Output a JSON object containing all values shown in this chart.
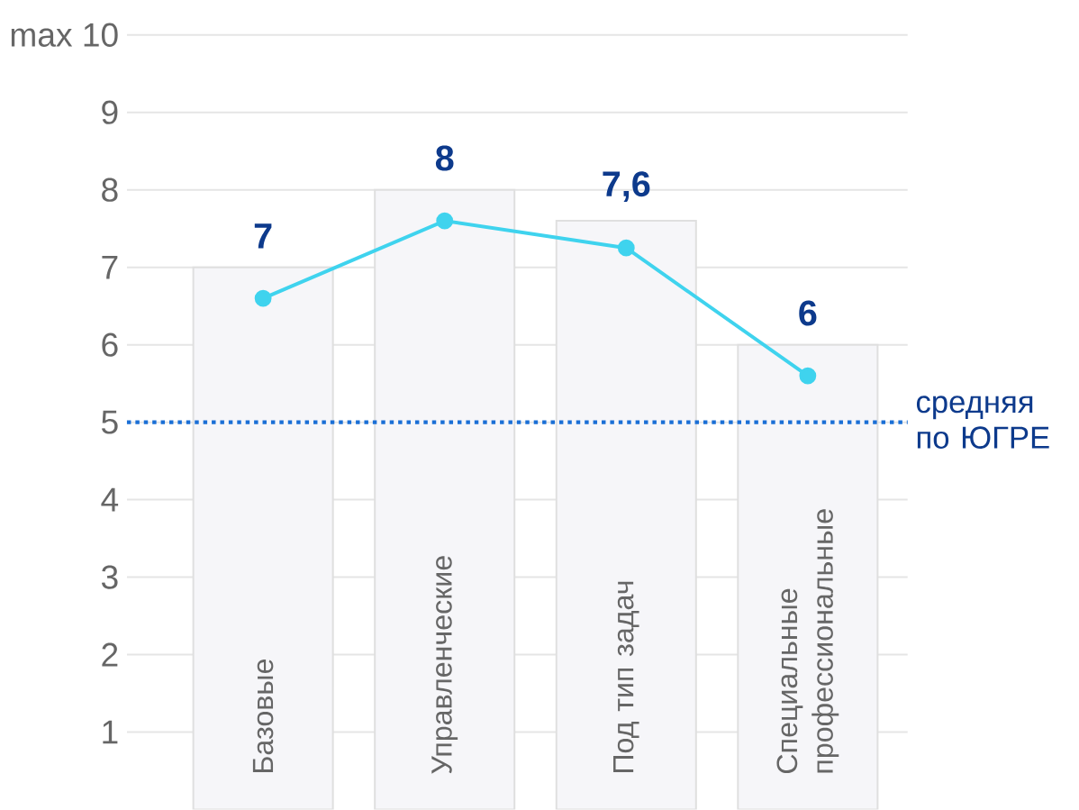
{
  "chart_data": {
    "type": "bar",
    "categories": [
      "Базовые",
      "Управленческие",
      "Под тип задач",
      "Специальные профессиональные"
    ],
    "series": [
      {
        "color": "#f6f6f9",
        "values": [
          7,
          8,
          7.6,
          6
        ],
        "value_labels": [
          "7",
          "8",
          "7,6",
          "6"
        ]
      },
      {
        "type": "line",
        "color": "#3fd3ee",
        "values": [
          6.6,
          7.6,
          7.25,
          5.6
        ],
        "marker": "circle"
      }
    ],
    "ylim": [
      0,
      10
    ],
    "yticks": [
      1,
      2,
      3,
      4,
      5,
      6,
      7,
      8,
      9,
      {
        "value": 10,
        "label": "max 10"
      }
    ],
    "grid": "y",
    "ref_lines": [
      {
        "axis": "y",
        "value": 5,
        "label": "средняя по ЮГРЕ",
        "color": "#1a6fd6",
        "line_style": "dotted"
      }
    ]
  }
}
